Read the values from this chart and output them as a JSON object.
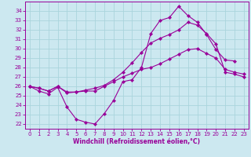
{
  "xlabel": "Windchill (Refroidissement éolien,°C)",
  "bg_color": "#cce8f0",
  "line_color": "#990099",
  "grid_color": "#aad4dc",
  "s0_x": [
    0,
    1,
    2,
    3,
    4,
    5,
    6,
    7,
    8,
    9,
    10,
    11,
    12,
    13,
    14,
    15,
    16,
    17,
    18,
    19,
    20,
    21,
    22
  ],
  "s0_y": [
    26.0,
    25.5,
    25.2,
    25.9,
    23.8,
    22.5,
    22.2,
    22.0,
    23.1,
    24.5,
    26.5,
    26.7,
    28.0,
    31.6,
    33.0,
    33.3,
    34.5,
    33.5,
    32.8,
    31.5,
    29.9,
    28.8,
    28.7
  ],
  "s1_x": [
    0,
    1,
    2,
    3,
    4,
    5,
    6,
    7,
    8,
    9,
    10,
    11,
    12,
    13,
    14,
    15,
    16,
    17,
    18,
    19,
    20,
    21,
    22,
    23
  ],
  "s1_y": [
    26.0,
    25.8,
    25.5,
    26.0,
    25.3,
    25.4,
    25.6,
    25.8,
    26.1,
    26.7,
    27.5,
    28.5,
    29.6,
    30.6,
    31.1,
    31.5,
    32.0,
    32.8,
    32.5,
    31.6,
    30.5,
    27.5,
    27.3,
    27.0
  ],
  "s2_x": [
    0,
    1,
    2,
    3,
    4,
    5,
    6,
    7,
    8,
    9,
    10,
    11,
    12,
    13,
    14,
    15,
    16,
    17,
    18,
    19,
    20,
    21,
    22,
    23
  ],
  "s2_y": [
    26.0,
    25.8,
    25.5,
    26.0,
    25.4,
    25.4,
    25.5,
    25.5,
    26.0,
    26.5,
    27.0,
    27.4,
    27.8,
    28.0,
    28.4,
    28.9,
    29.4,
    29.9,
    30.0,
    29.5,
    29.0,
    27.8,
    27.5,
    27.3
  ],
  "ylim": [
    21.5,
    35.0
  ],
  "xlim": [
    -0.5,
    23.5
  ],
  "yticks": [
    22,
    23,
    24,
    25,
    26,
    27,
    28,
    29,
    30,
    31,
    32,
    33,
    34
  ],
  "xticks": [
    0,
    1,
    2,
    3,
    4,
    5,
    6,
    7,
    8,
    9,
    10,
    11,
    12,
    13,
    14,
    15,
    16,
    17,
    18,
    19,
    20,
    21,
    22,
    23
  ],
  "marker": "D",
  "markersize": 2.2,
  "linewidth": 0.8,
  "tick_fontsize": 5.0,
  "xlabel_fontsize": 5.5
}
